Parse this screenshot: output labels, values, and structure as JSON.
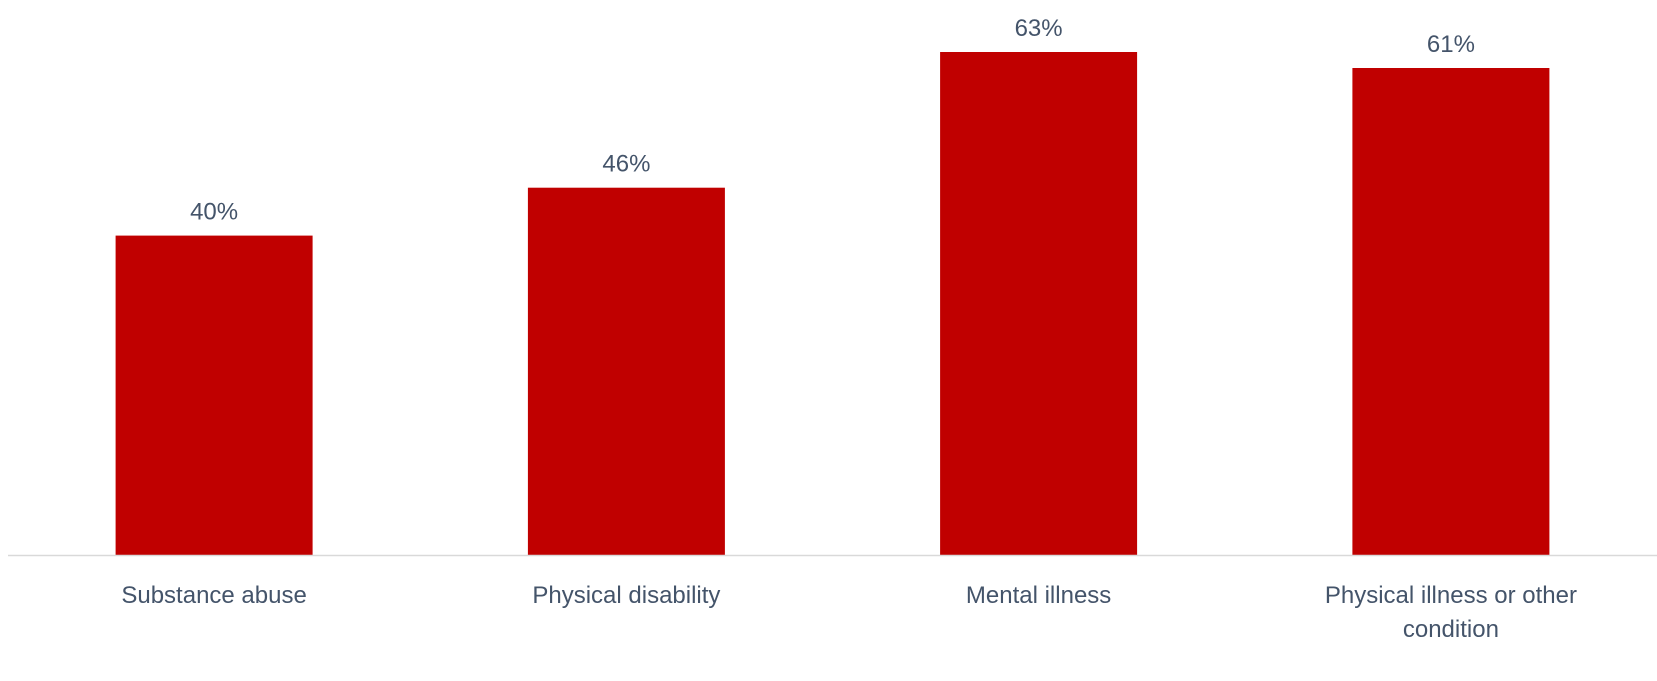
{
  "chart_data": {
    "type": "bar",
    "categories": [
      [
        "Substance abuse"
      ],
      [
        "Physical disability"
      ],
      [
        "Mental illness"
      ],
      [
        "Physical illness or other",
        "condition"
      ]
    ],
    "values": [
      40,
      46,
      63,
      61
    ],
    "value_labels": [
      "40%",
      "46%",
      "63%",
      "61%"
    ],
    "ylim": [
      0,
      63
    ],
    "grid": false,
    "legend": "none"
  },
  "colors": {
    "bar": "#c00000",
    "axis": "#d9d9d9",
    "text": "#44546a"
  }
}
